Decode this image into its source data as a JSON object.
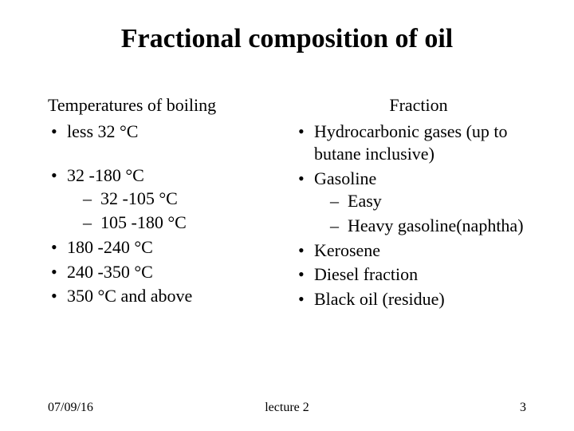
{
  "title": "Fractional composition of oil",
  "left": {
    "header": "Temperatures of boiling",
    "first_item": "less 32 °С",
    "items": [
      {
        "text": "32 -180 °С",
        "sub": [
          "   32 -105 °С",
          "105 -180 °С"
        ]
      },
      {
        "text": "180 -240 °С"
      },
      {
        "text": "240 -350 °С"
      },
      {
        "text": "350 °С and above"
      }
    ]
  },
  "right": {
    "header": "Fraction",
    "items": [
      {
        "text": "Hydrocarbonic gases (up to butane inclusive)"
      },
      {
        "text": "Gasoline",
        "sub": [
          "Easy",
          "Heavy gasoline(naphtha)"
        ]
      },
      {
        "text": "Kerosene"
      },
      {
        "text": "Diesel fraction"
      },
      {
        "text": "Black oil (residue)"
      }
    ]
  },
  "footer": {
    "date": "07/09/16",
    "center": "lecture 2",
    "page": "3"
  }
}
